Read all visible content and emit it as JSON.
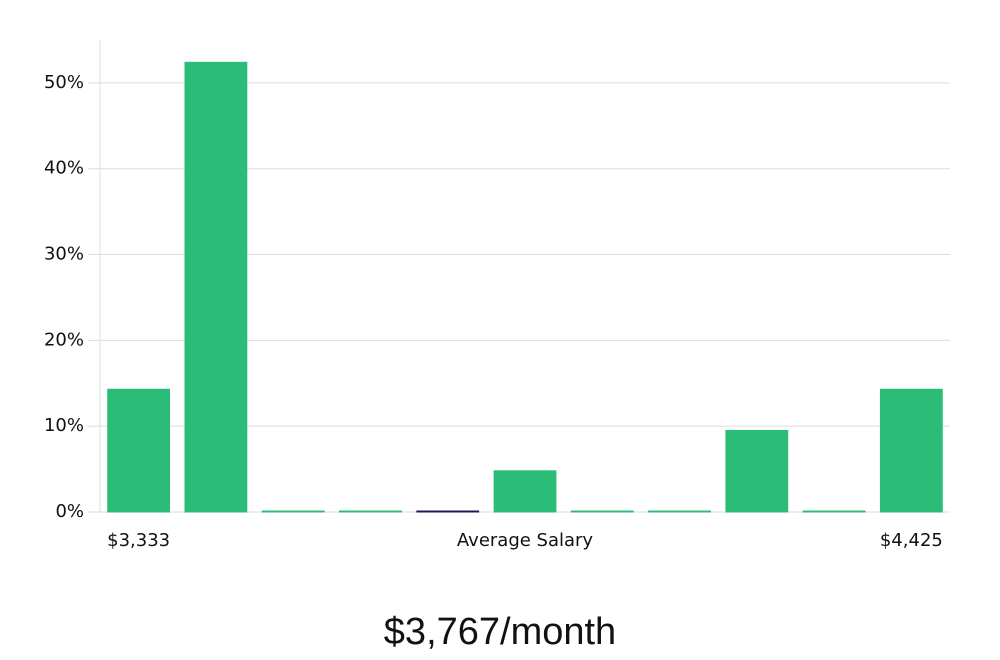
{
  "chart_data": {
    "type": "bar",
    "categories": [
      "$3,333",
      null,
      null,
      null,
      null,
      null,
      null,
      null,
      null,
      null,
      "$4,425"
    ],
    "values": [
      14.3,
      52.4,
      0,
      0,
      0,
      4.8,
      0,
      0,
      9.5,
      0,
      14.3
    ],
    "colors": [
      "#2bbd77",
      "#2bbd77",
      "#2bbd77",
      "#2bbd77",
      "#1b1b5a",
      "#2bbd77",
      "#2bbd77",
      "#2bbd77",
      "#2bbd77",
      "#2bbd77",
      "#2bbd77"
    ],
    "x_label": "Average Salary",
    "ylim": [
      0,
      55
    ],
    "yticks": [
      {
        "value": 0,
        "label": "0%"
      },
      {
        "value": 10,
        "label": "10%"
      },
      {
        "value": 20,
        "label": "20%"
      },
      {
        "value": 30,
        "label": "30%"
      },
      {
        "value": 40,
        "label": "40%"
      },
      {
        "value": 50,
        "label": "50%"
      }
    ],
    "grid": true,
    "footer": "$3,767/month"
  }
}
